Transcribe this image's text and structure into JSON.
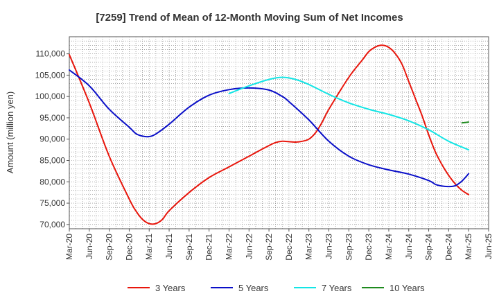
{
  "chart_data": {
    "type": "line",
    "title": "[7259]  Trend of Mean of 12-Month Moving Sum of Net Incomes",
    "xlabel": "",
    "ylabel": "Amount (million yen)",
    "ylim": [
      69000,
      114000
    ],
    "yticks": [
      70000,
      75000,
      80000,
      85000,
      90000,
      95000,
      100000,
      105000,
      110000
    ],
    "ytick_labels": [
      "70,000",
      "75,000",
      "80,000",
      "85,000",
      "90,000",
      "95,000",
      "100,000",
      "105,000",
      "110,000"
    ],
    "x_range": [
      "2020-03",
      "2025-06"
    ],
    "xticks": [
      "2020-03",
      "2020-06",
      "2020-09",
      "2020-12",
      "2021-03",
      "2021-06",
      "2021-09",
      "2021-12",
      "2022-03",
      "2022-06",
      "2022-09",
      "2022-12",
      "2023-03",
      "2023-06",
      "2023-09",
      "2023-12",
      "2024-03",
      "2024-06",
      "2024-09",
      "2024-12",
      "2025-03",
      "2025-06"
    ],
    "xtick_labels": [
      "Mar-20",
      "Jun-20",
      "Sep-20",
      "Dec-20",
      "Mar-21",
      "Jun-21",
      "Sep-21",
      "Dec-21",
      "Mar-22",
      "Jun-22",
      "Sep-22",
      "Dec-22",
      "Mar-23",
      "Jun-23",
      "Sep-23",
      "Dec-23",
      "Mar-24",
      "Jun-24",
      "Sep-24",
      "Dec-24",
      "Mar-25",
      "Jun-25"
    ],
    "grid": true,
    "legend_placement": "bottom",
    "series": [
      {
        "name": "3 Years",
        "color": "#e8160c",
        "points": [
          [
            "2020-03",
            109800
          ],
          [
            "2020-06",
            98500
          ],
          [
            "2020-09",
            86000
          ],
          [
            "2020-12",
            76000
          ],
          [
            "2021-01",
            73200
          ],
          [
            "2021-02",
            71200
          ],
          [
            "2021-03",
            70200
          ],
          [
            "2021-04",
            70200
          ],
          [
            "2021-05",
            71200
          ],
          [
            "2021-06",
            73200
          ],
          [
            "2021-09",
            77500
          ],
          [
            "2021-12",
            81000
          ],
          [
            "2022-03",
            83500
          ],
          [
            "2022-06",
            86000
          ],
          [
            "2022-09",
            88500
          ],
          [
            "2022-10",
            89200
          ],
          [
            "2022-11",
            89500
          ],
          [
            "2022-12",
            89400
          ],
          [
            "2023-01",
            89300
          ],
          [
            "2023-02",
            89500
          ],
          [
            "2023-03",
            90000
          ],
          [
            "2023-04",
            91500
          ],
          [
            "2023-05",
            94000
          ],
          [
            "2023-06",
            97000
          ],
          [
            "2023-09",
            104500
          ],
          [
            "2023-11",
            108500
          ],
          [
            "2023-12",
            110500
          ],
          [
            "2024-01",
            111600
          ],
          [
            "2024-02",
            112000
          ],
          [
            "2024-03",
            111500
          ],
          [
            "2024-04",
            110000
          ],
          [
            "2024-05",
            107500
          ],
          [
            "2024-06",
            103500
          ],
          [
            "2024-07",
            99500
          ],
          [
            "2024-08",
            95500
          ],
          [
            "2024-09",
            91000
          ],
          [
            "2024-10",
            87000
          ],
          [
            "2024-11",
            84000
          ],
          [
            "2024-12",
            81500
          ],
          [
            "2025-01",
            79500
          ],
          [
            "2025-02",
            78000
          ],
          [
            "2025-03",
            77000
          ]
        ]
      },
      {
        "name": "5 Years",
        "color": "#0a0fc8",
        "points": [
          [
            "2020-03",
            106200
          ],
          [
            "2020-06",
            102500
          ],
          [
            "2020-09",
            97000
          ],
          [
            "2020-12",
            92800
          ],
          [
            "2021-01",
            91300
          ],
          [
            "2021-02",
            90700
          ],
          [
            "2021-03",
            90600
          ],
          [
            "2021-04",
            91200
          ],
          [
            "2021-06",
            93500
          ],
          [
            "2021-09",
            97500
          ],
          [
            "2021-12",
            100300
          ],
          [
            "2022-03",
            101600
          ],
          [
            "2022-06",
            102000
          ],
          [
            "2022-09",
            101500
          ],
          [
            "2022-11",
            100000
          ],
          [
            "2022-12",
            98800
          ],
          [
            "2023-03",
            94500
          ],
          [
            "2023-06",
            89500
          ],
          [
            "2023-09",
            86000
          ],
          [
            "2023-12",
            84000
          ],
          [
            "2024-03",
            82800
          ],
          [
            "2024-06",
            81800
          ],
          [
            "2024-09",
            80300
          ],
          [
            "2024-10",
            79400
          ],
          [
            "2024-11",
            79000
          ],
          [
            "2024-12",
            78900
          ],
          [
            "2025-01",
            79100
          ],
          [
            "2025-02",
            80200
          ],
          [
            "2025-03",
            81900
          ]
        ]
      },
      {
        "name": "7 Years",
        "color": "#13e5e5",
        "points": [
          [
            "2022-03",
            100700
          ],
          [
            "2022-06",
            102500
          ],
          [
            "2022-09",
            104000
          ],
          [
            "2022-11",
            104500
          ],
          [
            "2023-01",
            104000
          ],
          [
            "2023-03",
            102800
          ],
          [
            "2023-06",
            100500
          ],
          [
            "2023-09",
            98500
          ],
          [
            "2023-12",
            97000
          ],
          [
            "2024-03",
            95800
          ],
          [
            "2024-06",
            94300
          ],
          [
            "2024-09",
            92200
          ],
          [
            "2024-12",
            89500
          ],
          [
            "2025-03",
            87500
          ]
        ]
      },
      {
        "name": "10 Years",
        "color": "#1e8a1e",
        "points": [
          [
            "2025-02",
            93800
          ],
          [
            "2025-03",
            94000
          ]
        ]
      }
    ]
  }
}
